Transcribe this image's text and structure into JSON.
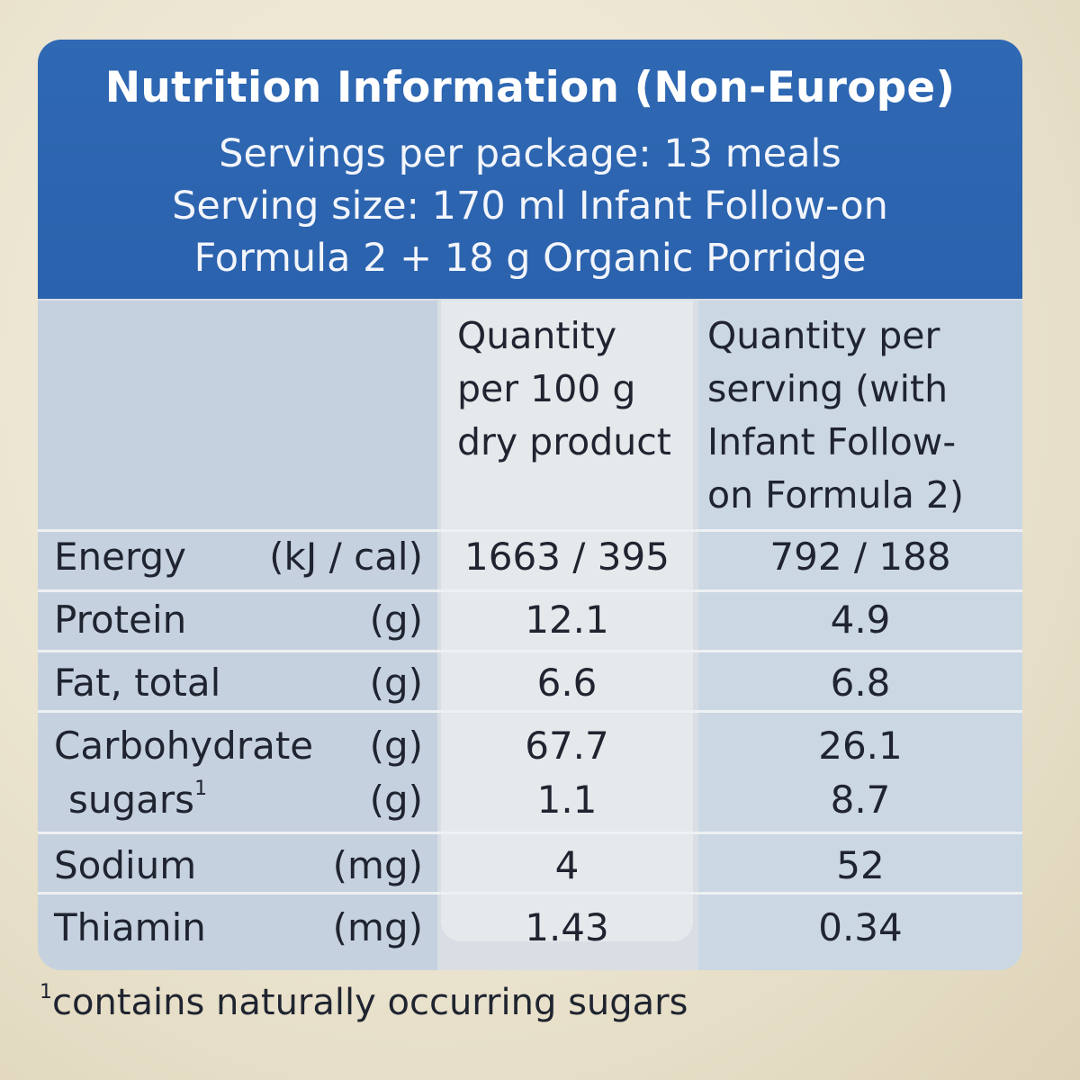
{
  "header": {
    "title": "Nutrition Information (Non-Europe)",
    "servings_per_package": "Servings per package: 13 meals",
    "serving_size_line1": "Serving size: 170 ml Infant Follow-on",
    "serving_size_line2": "Formula 2 + 18 g Organic Porridge"
  },
  "columns": {
    "per_100g": [
      "Quantity",
      "per 100 g",
      "dry product"
    ],
    "per_serving": [
      "Quantity per",
      "serving (with",
      "Infant Follow-",
      "on Formula 2)"
    ]
  },
  "rows": [
    {
      "name": "Energy",
      "unit": "(kJ / cal)",
      "per_100g": "1663 / 395",
      "per_serving": "792 / 188"
    },
    {
      "name": "Protein",
      "unit": "(g)",
      "per_100g": "12.1",
      "per_serving": "4.9"
    },
    {
      "name": "Fat, total",
      "unit": "(g)",
      "per_100g": "6.6",
      "per_serving": "6.8"
    },
    {
      "name": "Carbohydrate",
      "unit": "(g)",
      "per_100g": "67.7",
      "per_serving": "26.1"
    },
    {
      "name": "sugars",
      "marker": "1",
      "unit": "(g)",
      "per_100g": "1.1",
      "per_serving": "8.7"
    },
    {
      "name": "Sodium",
      "unit": "(mg)",
      "per_100g": "4",
      "per_serving": "52"
    },
    {
      "name": "Thiamin",
      "unit": "(mg)",
      "per_100g": "1.43",
      "per_serving": "0.34"
    }
  ],
  "footnote": {
    "marker": "1",
    "text": "contains naturally occurring sugars"
  },
  "colors": {
    "header_blue": "#2f68b3",
    "panel_light": "#d9dee5",
    "background": "#ebe4cf"
  }
}
